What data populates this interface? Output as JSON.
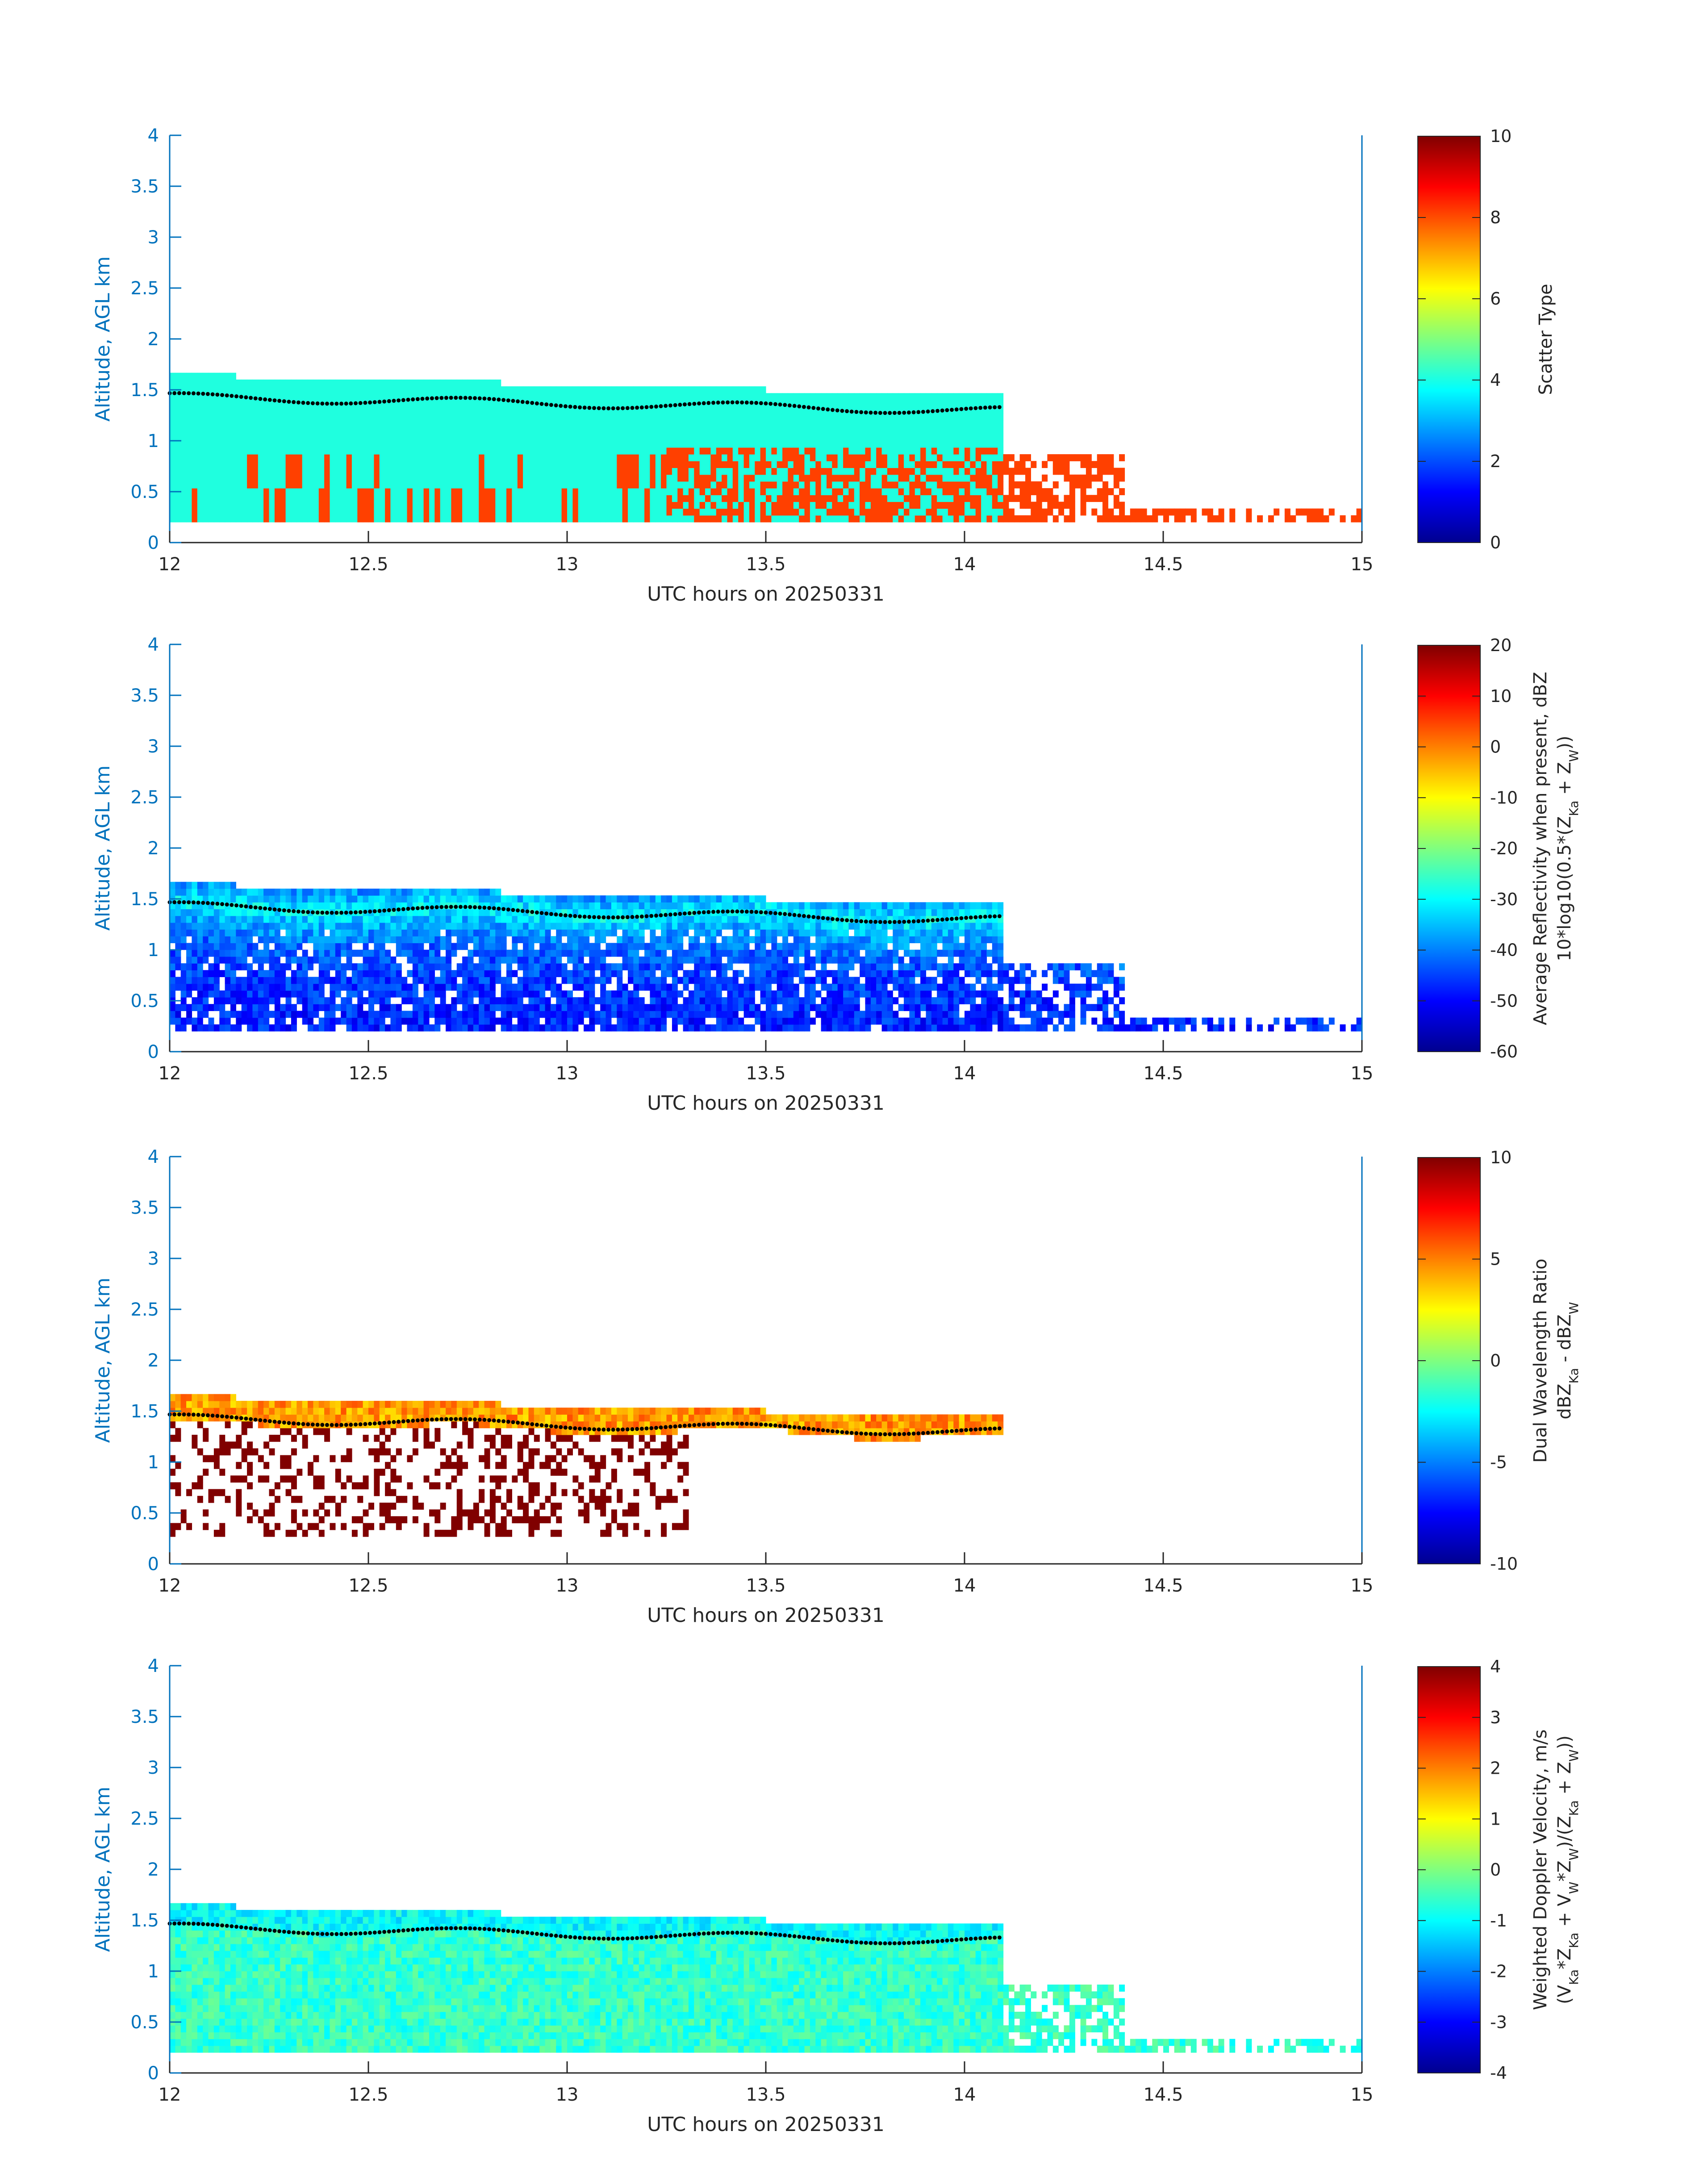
{
  "figure": {
    "date_label": "UTC hours on 20250331"
  },
  "colors": {
    "axis_blue": "#0072BD",
    "text": "#262626",
    "scatter_cloud": "#1FFFDF",
    "scatter_precip": "#FF4000"
  },
  "chart_data": [
    {
      "type": "heatmap",
      "xlabel": "UTC hours on 20250331",
      "ylabel": "Altitude, AGL km",
      "xlim": [
        12,
        15
      ],
      "ylim": [
        0,
        4
      ],
      "xticks": [
        "12",
        "12.5",
        "13",
        "13.5",
        "14",
        "14.5",
        "15"
      ],
      "yticks": [
        "0",
        "0.5",
        "1",
        "1.5",
        "2",
        "2.5",
        "3",
        "3.5",
        "4"
      ],
      "colorbar": {
        "label": [
          "Scatter Type"
        ],
        "ticks": [
          "0",
          "2",
          "4",
          "6",
          "8",
          "10"
        ],
        "range": [
          0,
          10
        ],
        "colormap": "jet"
      },
      "field": "scatter",
      "cloud_base_dots": true
    },
    {
      "type": "heatmap",
      "xlabel": "UTC hours on 20250331",
      "ylabel": "Altitude, AGL km",
      "xlim": [
        12,
        15
      ],
      "ylim": [
        0,
        4
      ],
      "xticks": [
        "12",
        "12.5",
        "13",
        "13.5",
        "14",
        "14.5",
        "15"
      ],
      "yticks": [
        "0",
        "0.5",
        "1",
        "1.5",
        "2",
        "2.5",
        "3",
        "3.5",
        "4"
      ],
      "colorbar": {
        "label": [
          "Average Reflectivity when present, dBZ",
          "10*log10(0.5*(Z",
          "Ka",
          " + Z",
          "W",
          "))"
        ],
        "ticks": [
          "-60",
          "-50",
          "-40",
          "-30",
          "-20",
          "-10",
          "0",
          "10",
          "20"
        ],
        "range": [
          -60,
          20
        ],
        "colormap": "jet"
      },
      "field": "reflectivity",
      "cloud_base_dots": true
    },
    {
      "type": "heatmap",
      "xlabel": "UTC hours on 20250331",
      "ylabel": "Altitude, AGL km",
      "xlim": [
        12,
        15
      ],
      "ylim": [
        0,
        4
      ],
      "xticks": [
        "12",
        "12.5",
        "13",
        "13.5",
        "14",
        "14.5",
        "15"
      ],
      "yticks": [
        "0",
        "0.5",
        "1",
        "1.5",
        "2",
        "2.5",
        "3",
        "3.5",
        "4"
      ],
      "colorbar": {
        "label": [
          "Dual Wavelength Ratio",
          "dBZ",
          "Ka",
          " - dBZ",
          "W"
        ],
        "ticks": [
          "-10",
          "-5",
          "0",
          "5",
          "10"
        ],
        "range": [
          -10,
          10
        ],
        "colormap": "jet"
      },
      "field": "dwr",
      "cloud_base_dots": true
    },
    {
      "type": "heatmap",
      "xlabel": "UTC hours on 20250331",
      "ylabel": "Altitude, AGL km",
      "xlim": [
        12,
        15
      ],
      "ylim": [
        0,
        4
      ],
      "xticks": [
        "12",
        "12.5",
        "13",
        "13.5",
        "14",
        "14.5",
        "15"
      ],
      "yticks": [
        "0",
        "0.5",
        "1",
        "1.5",
        "2",
        "2.5",
        "3",
        "3.5",
        "4"
      ],
      "colorbar": {
        "label": [
          "Weighted Doppler Velocity, m/s",
          "(V",
          "Ka",
          "*Z",
          "Ka",
          " + V",
          "W",
          "*Z",
          "W",
          ")/(Z",
          "Ka",
          " + Z",
          "W",
          "))"
        ],
        "ticks": [
          "-4",
          "-3",
          "-2",
          "-1",
          "0",
          "1",
          "2",
          "3",
          "4"
        ],
        "range": [
          -4,
          4
        ],
        "colormap": "jet"
      },
      "field": "velocity",
      "cloud_base_dots": true
    }
  ]
}
